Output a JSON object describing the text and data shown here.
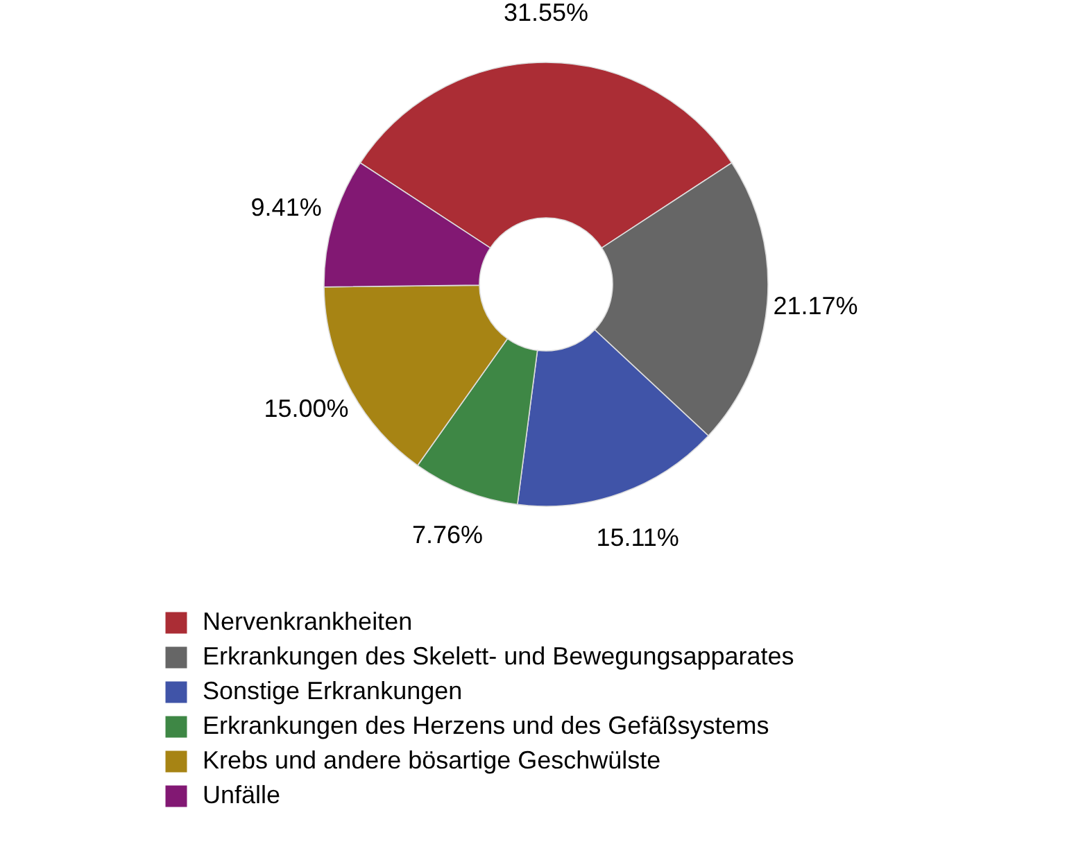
{
  "chart_data": {
    "type": "donut",
    "categories": [
      "Nervenkrankheiten",
      "Erkrankungen des Skelett- und Bewegungsapparates",
      "Sonstige Erkrankungen",
      "Erkrankungen des Herzens und des Gefäßsystems",
      "Krebs und andere bösartige Geschwülste",
      "Unfälle"
    ],
    "values": [
      31.55,
      21.17,
      15.11,
      7.76,
      15.0,
      9.41
    ],
    "colors": [
      "#ab2d35",
      "#666666",
      "#4054a8",
      "#3e8745",
      "#a78414",
      "#821873"
    ],
    "value_labels": [
      "31.55%",
      "21.17%",
      "15.11%",
      "7.76%",
      "15.00%",
      "9.41%"
    ],
    "legend": "bottom"
  }
}
